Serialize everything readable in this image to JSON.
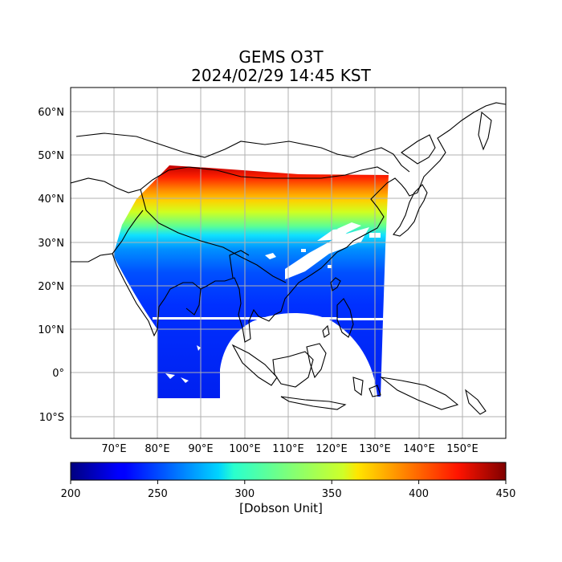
{
  "title": "GEMS O3T",
  "subtitle": "2024/02/29 14:45 KST",
  "map": {
    "lon_range": [
      60,
      160
    ],
    "lat_range": [
      -15,
      65
    ],
    "lat_ticks": [
      "60°N",
      "50°N",
      "40°N",
      "30°N",
      "20°N",
      "10°N",
      "0°",
      "10°S"
    ],
    "lon_ticks": [
      "70°E",
      "80°E",
      "90°E",
      "100°E",
      "110°E",
      "120°E",
      "130°E",
      "140°E",
      "150°E"
    ],
    "grid": true
  },
  "colorbar": {
    "min": 200,
    "max": 450,
    "ticks": [
      "200",
      "250",
      "300",
      "350",
      "400",
      "450"
    ],
    "label": "[Dobson Unit]",
    "colormap": "jet"
  }
}
